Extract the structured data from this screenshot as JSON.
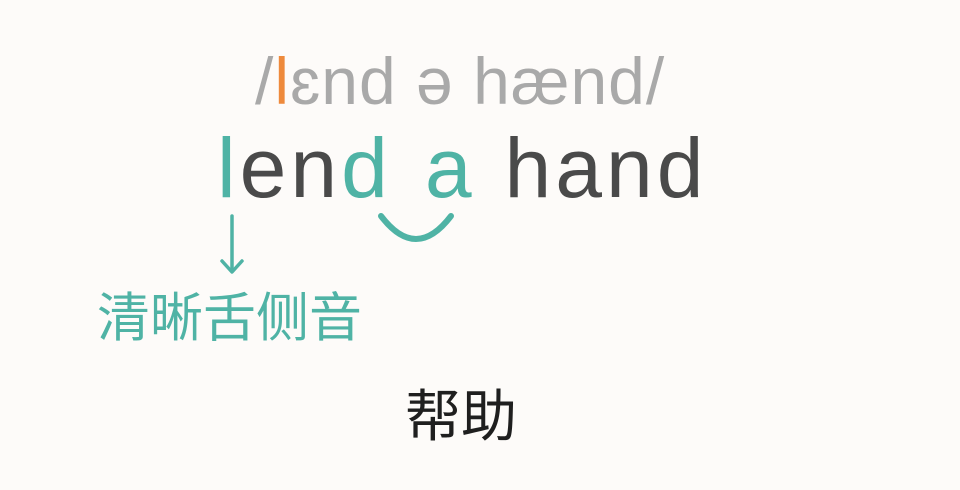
{
  "phonetic": {
    "open": "/",
    "highlight": "l",
    "rest": "ɛnd ə hænd/"
  },
  "phrase": {
    "words": [
      {
        "parts": [
          "l",
          "en",
          "d"
        ]
      },
      {
        "parts": [
          "a"
        ]
      },
      {
        "parts": [
          "hand"
        ]
      }
    ]
  },
  "annotation": {
    "label": "清晰舌侧音",
    "icon": "down-arrow-icon"
  },
  "linking_mark": {
    "icon": "liaison-arc-icon"
  },
  "meaning": "帮助",
  "colors": {
    "background": "#fdfbf9",
    "phonetic": "#a9a9a9",
    "phonetic_highlight": "#ee8a3c",
    "accent": "#4fb3a5",
    "text": "#4a4a4a",
    "meaning": "#1f1f1f"
  }
}
